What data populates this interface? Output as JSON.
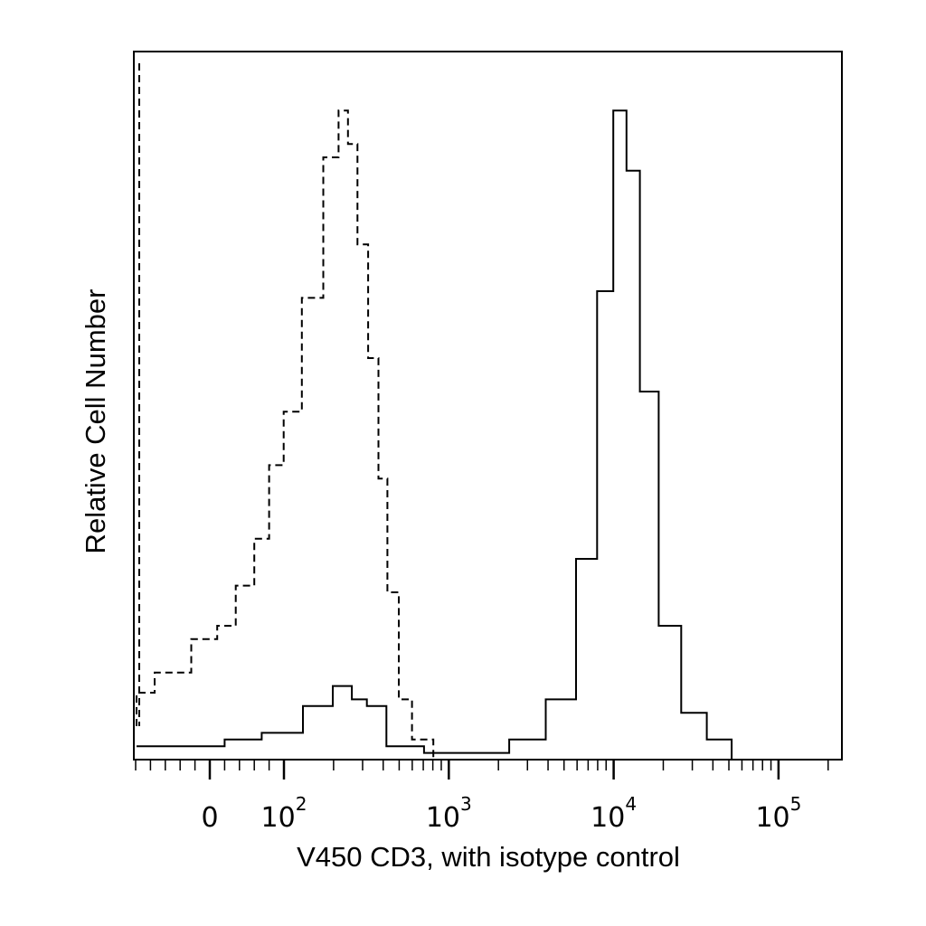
{
  "chart_data": {
    "type": "line",
    "xlabel": "V450 CD3, with isotype control",
    "ylabel": "Relative Cell Number",
    "x_scale": "biexponential (log above ~10^2)",
    "x_tick_labels": [
      {
        "base": "0",
        "exp": "",
        "value": 0
      },
      {
        "base": "10",
        "exp": "2",
        "value": 100
      },
      {
        "base": "10",
        "exp": "3",
        "value": 1000
      },
      {
        "base": "10",
        "exp": "4",
        "value": 10000
      },
      {
        "base": "10",
        "exp": "5",
        "value": 100000
      }
    ],
    "y_ticks": false,
    "grid": false,
    "legend": "none",
    "y_range": [
      0,
      1
    ],
    "series": [
      {
        "style": "dashed",
        "color": "#000000",
        "points": [
          [
            -150,
            0.05
          ],
          [
            -100,
            0.1
          ],
          [
            -50,
            0.13
          ],
          [
            0,
            0.18
          ],
          [
            20,
            0.2
          ],
          [
            50,
            0.26
          ],
          [
            70,
            0.33
          ],
          [
            90,
            0.44
          ],
          [
            110,
            0.52
          ],
          [
            150,
            0.69
          ],
          [
            200,
            0.9
          ],
          [
            230,
            0.97
          ],
          [
            260,
            0.92
          ],
          [
            300,
            0.77
          ],
          [
            350,
            0.6
          ],
          [
            400,
            0.42
          ],
          [
            450,
            0.25
          ],
          [
            550,
            0.09
          ],
          [
            650,
            0.03
          ],
          [
            1000,
            0.0
          ],
          [
            10000,
            0.0
          ],
          [
            100000,
            0.0
          ],
          [
            300000,
            0.0
          ]
        ]
      },
      {
        "style": "solid",
        "color": "#000000",
        "points": [
          [
            -150,
            0.02
          ],
          [
            0,
            0.02
          ],
          [
            40,
            0.03
          ],
          [
            100,
            0.04
          ],
          [
            170,
            0.08
          ],
          [
            230,
            0.11
          ],
          [
            290,
            0.09
          ],
          [
            350,
            0.08
          ],
          [
            500,
            0.02
          ],
          [
            1000,
            0.01
          ],
          [
            1800,
            0.01
          ],
          [
            3000,
            0.03
          ],
          [
            5000,
            0.09
          ],
          [
            7000,
            0.3
          ],
          [
            9000,
            0.7
          ],
          [
            11000,
            0.97
          ],
          [
            13000,
            0.88
          ],
          [
            16000,
            0.55
          ],
          [
            22000,
            0.2
          ],
          [
            30000,
            0.07
          ],
          [
            45000,
            0.03
          ],
          [
            60000,
            0.0
          ],
          [
            100000,
            0.0
          ],
          [
            300000,
            0.0
          ]
        ]
      }
    ]
  }
}
